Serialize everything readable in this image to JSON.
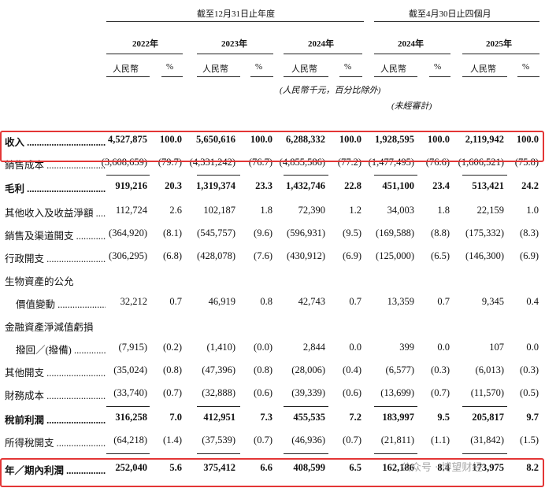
{
  "header": {
    "period_full_year": "截至12月31日止年度",
    "period_four_months": "截至4月30日止四個月",
    "years": [
      "2022年",
      "2023年",
      "2024年",
      "2024年",
      "2025年"
    ],
    "currency_label": "人民幣",
    "percent_label": "%",
    "unit_note": "(人民幣千元，百分比除外)",
    "unaudited_note": "(未經審計)"
  },
  "rows": [
    {
      "label": "收入",
      "label_lines": [
        "收入"
      ],
      "bold": true,
      "values": [
        "4,527,875",
        "100.0",
        "5,650,616",
        "100.0",
        "6,288,332",
        "100.0",
        "1,928,595",
        "100.0",
        "2,119,942",
        "100.0"
      ]
    },
    {
      "label": "銷售成本",
      "label_lines": [
        "銷售成本"
      ],
      "bold": false,
      "values": [
        "(3,608,659)",
        "(79.7)",
        "(4,331,242)",
        "(76.7)",
        "(4,855,586)",
        "(77.2)",
        "(1,477,495)",
        "(76.6)",
        "(1,606,521)",
        "(75.8)"
      ]
    },
    {
      "label": "毛利",
      "label_lines": [
        "毛利"
      ],
      "bold": true,
      "values": [
        "919,216",
        "20.3",
        "1,319,374",
        "23.3",
        "1,432,746",
        "22.8",
        "451,100",
        "23.4",
        "513,421",
        "24.2"
      ]
    },
    {
      "label": "其他收入及收益淨額",
      "label_lines": [
        "其他收入及收益淨額"
      ],
      "bold": false,
      "values": [
        "112,724",
        "2.6",
        "102,187",
        "1.8",
        "72,390",
        "1.2",
        "34,003",
        "1.8",
        "22,159",
        "1.0"
      ]
    },
    {
      "label": "銷售及渠道開支",
      "label_lines": [
        "銷售及渠道開支"
      ],
      "bold": false,
      "values": [
        "(364,920)",
        "(8.1)",
        "(545,757)",
        "(9.6)",
        "(596,931)",
        "(9.5)",
        "(169,588)",
        "(8.8)",
        "(175,332)",
        "(8.3)"
      ]
    },
    {
      "label": "行政開支",
      "label_lines": [
        "行政開支"
      ],
      "bold": false,
      "values": [
        "(306,295)",
        "(6.8)",
        "(428,078)",
        "(7.6)",
        "(430,912)",
        "(6.9)",
        "(125,000)",
        "(6.5)",
        "(146,300)",
        "(6.9)"
      ]
    },
    {
      "label": "生物資產的公允價值變動",
      "label_lines": [
        "生物資產的公允",
        "價值變動"
      ],
      "bold": false,
      "values": [
        "32,212",
        "0.7",
        "46,919",
        "0.8",
        "42,743",
        "0.7",
        "13,359",
        "0.7",
        "9,345",
        "0.4"
      ]
    },
    {
      "label": "金融資產淨減值虧損撥回／(撥備)",
      "label_lines": [
        "金融資產淨減值虧損",
        "撥回／(撥備)"
      ],
      "bold": false,
      "values": [
        "(7,915)",
        "(0.2)",
        "(1,410)",
        "(0.0)",
        "2,844",
        "0.0",
        "399",
        "0.0",
        "107",
        "0.0"
      ]
    },
    {
      "label": "其他開支",
      "label_lines": [
        "其他開支"
      ],
      "bold": false,
      "values": [
        "(35,024)",
        "(0.8)",
        "(47,396)",
        "(0.8)",
        "(28,006)",
        "(0.4)",
        "(6,577)",
        "(0.3)",
        "(6,013)",
        "(0.3)"
      ]
    },
    {
      "label": "財務成本",
      "label_lines": [
        "財務成本"
      ],
      "bold": false,
      "values": [
        "(33,740)",
        "(0.7)",
        "(32,888)",
        "(0.6)",
        "(39,339)",
        "(0.6)",
        "(13,699)",
        "(0.7)",
        "(11,570)",
        "(0.5)"
      ]
    },
    {
      "label": "稅前利潤",
      "label_lines": [
        "稅前利潤"
      ],
      "bold": true,
      "values": [
        "316,258",
        "7.0",
        "412,951",
        "7.3",
        "455,535",
        "7.2",
        "183,997",
        "9.5",
        "205,817",
        "9.7"
      ]
    },
    {
      "label": "所得稅開支",
      "label_lines": [
        "所得稅開支"
      ],
      "bold": false,
      "values": [
        "(64,218)",
        "(1.4)",
        "(37,539)",
        "(0.7)",
        "(46,936)",
        "(0.7)",
        "(21,811)",
        "(1.1)",
        "(31,842)",
        "(1.5)"
      ]
    },
    {
      "label": "年／期內利潤",
      "label_lines": [
        "年／期內利潤"
      ],
      "bold": true,
      "values": [
        "252,040",
        "5.6",
        "375,412",
        "6.6",
        "408,599",
        "6.5",
        "162,186",
        "8.4",
        "173,975",
        "8.2"
      ]
    }
  ],
  "watermark": "公众号 · 博望财经",
  "colors": {
    "highlight": "#e33636",
    "text": "#111111",
    "rule": "#222222"
  }
}
